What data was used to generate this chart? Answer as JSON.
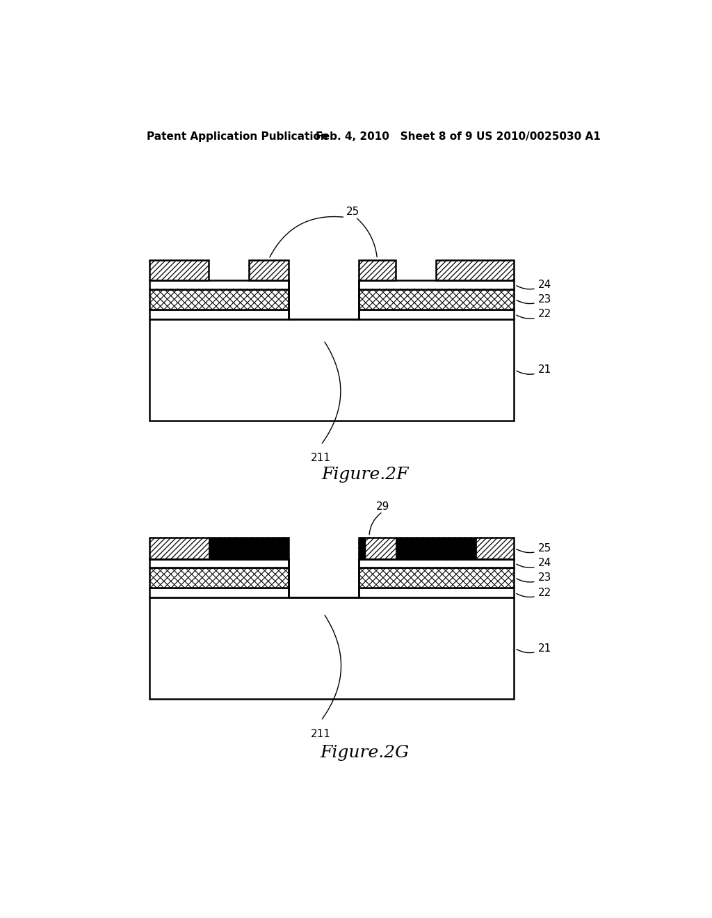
{
  "header_left": "Patent Application Publication",
  "header_mid": "Feb. 4, 2010   Sheet 8 of 9",
  "header_right": "US 2010/0025030 A1",
  "fig2f_label": "Figure.2F",
  "fig2g_label": "Figure.2G",
  "bg_color": "#ffffff",
  "line_color": "#000000"
}
